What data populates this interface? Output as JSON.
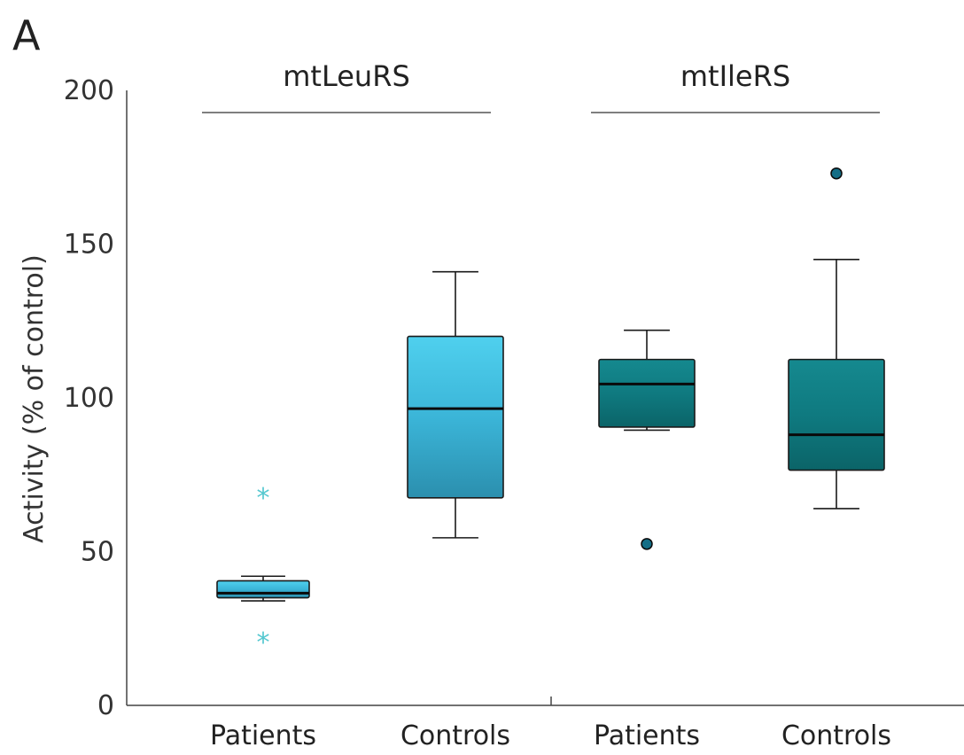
{
  "panel_label": "A",
  "chart_data": {
    "type": "box",
    "ylabel": "Activity (% of control)",
    "ylim": [
      0,
      200
    ],
    "yticks": [
      0,
      50,
      100,
      150,
      200
    ],
    "grid": false,
    "groups": [
      {
        "label": "mtLeuRS",
        "categories": [
          "Patients",
          "Controls"
        ],
        "color": "#3db7d9",
        "boxes": [
          {
            "category": "Patients",
            "whisker_low": 34,
            "q1": 35,
            "median": 36.5,
            "q3": 40.5,
            "whisker_high": 42,
            "outliers": [
              68,
              21
            ],
            "outlier_marker": "asterisk"
          },
          {
            "category": "Controls",
            "whisker_low": 54.5,
            "q1": 67.5,
            "median": 96.5,
            "q3": 120,
            "whisker_high": 141,
            "outliers": [],
            "outlier_marker": "asterisk"
          }
        ]
      },
      {
        "label": "mtIleRS",
        "categories": [
          "Patients",
          "Controls"
        ],
        "color": "#0e7a80",
        "boxes": [
          {
            "category": "Patients",
            "whisker_low": 89.5,
            "q1": 90.5,
            "median": 104.5,
            "q3": 112.5,
            "whisker_high": 122,
            "outliers": [
              52.5
            ],
            "outlier_marker": "circle"
          },
          {
            "category": "Controls",
            "whisker_low": 64,
            "q1": 76.5,
            "median": 88,
            "q3": 112.5,
            "whisker_high": 145,
            "outliers": [
              173
            ],
            "outlier_marker": "circle"
          }
        ]
      }
    ],
    "category_order": [
      "Patients",
      "Controls",
      "Patients",
      "Controls"
    ],
    "outlier_colors": {
      "asterisk": "#55c8d0",
      "circle": "#146e86"
    }
  }
}
